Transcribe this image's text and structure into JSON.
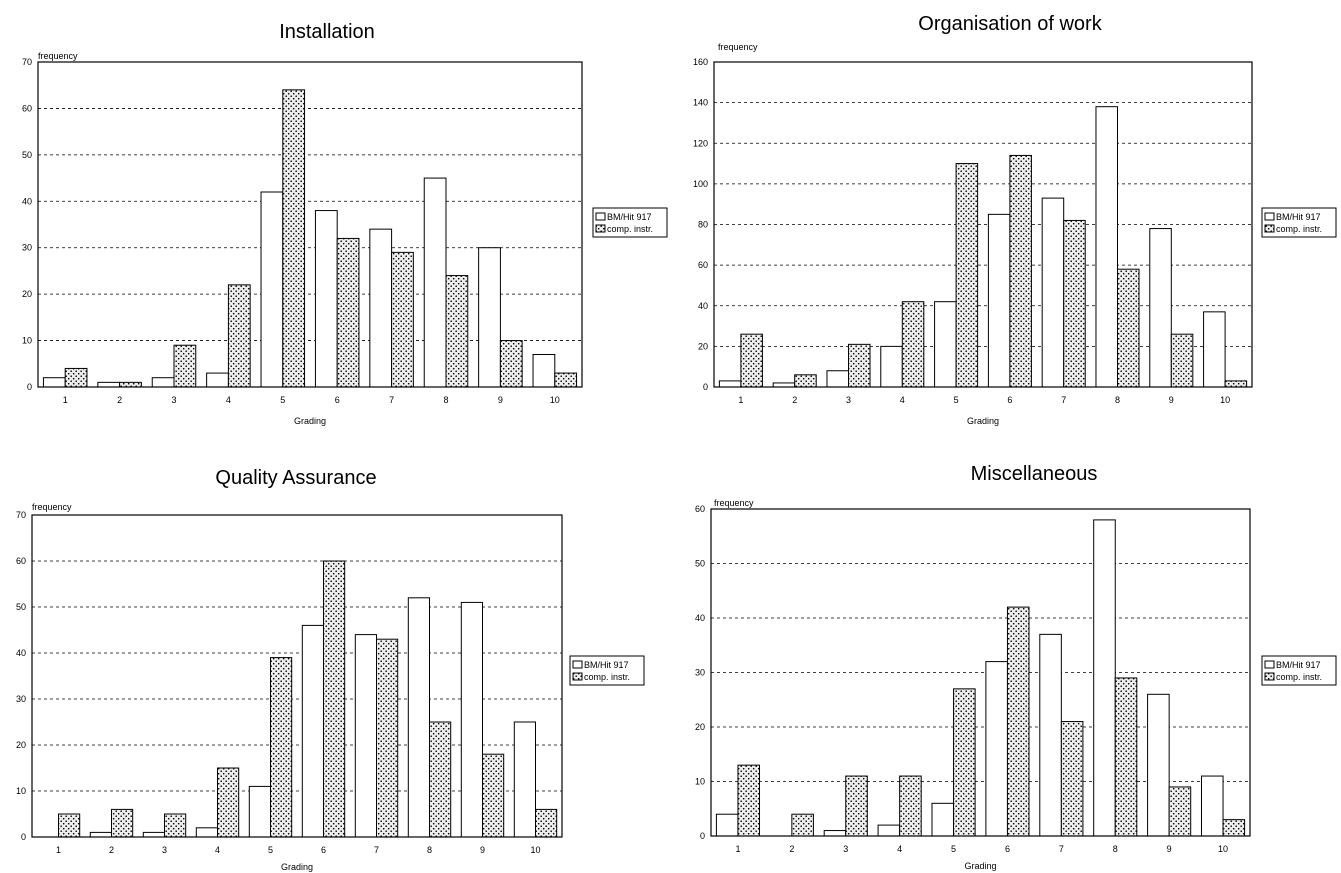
{
  "colors": {
    "bm_fill": "#ffffff",
    "comp_fill": "#eeeeee",
    "comp_dots": "#000000",
    "frame": "#000000",
    "grid": "#000000"
  },
  "chart_data": [
    {
      "type": "bar",
      "title": "Installation",
      "ylabel": "frequency",
      "xlabel": "Grading",
      "categories": [
        "1",
        "2",
        "3",
        "4",
        "5",
        "6",
        "7",
        "8",
        "9",
        "10"
      ],
      "ylim": [
        0,
        70
      ],
      "yticks": [
        0,
        10,
        20,
        30,
        40,
        50,
        60,
        70
      ],
      "grid": true,
      "legend": "right",
      "series": [
        {
          "name": "BM/Hit 917",
          "values": [
            2,
            1,
            2,
            3,
            42,
            38,
            34,
            45,
            30,
            7
          ]
        },
        {
          "name": "comp. instr.",
          "values": [
            4,
            1,
            9,
            22,
            64,
            32,
            29,
            24,
            10,
            3
          ]
        }
      ]
    },
    {
      "type": "bar",
      "title": "Organisation of work",
      "ylabel": "frequency",
      "xlabel": "Grading",
      "categories": [
        "1",
        "2",
        "3",
        "4",
        "5",
        "6",
        "7",
        "8",
        "9",
        "10"
      ],
      "ylim": [
        0,
        160
      ],
      "yticks": [
        0,
        20,
        40,
        60,
        80,
        100,
        120,
        140,
        160
      ],
      "grid": true,
      "legend": "right",
      "series": [
        {
          "name": "BM/Hit 917",
          "values": [
            3,
            2,
            8,
            20,
            42,
            85,
            93,
            138,
            78,
            37
          ]
        },
        {
          "name": "comp. instr.",
          "values": [
            26,
            6,
            21,
            42,
            110,
            114,
            82,
            58,
            26,
            3
          ]
        }
      ]
    },
    {
      "type": "bar",
      "title": "Quality Assurance",
      "ylabel": "frequency",
      "xlabel": "Grading",
      "categories": [
        "1",
        "2",
        "3",
        "4",
        "5",
        "6",
        "7",
        "8",
        "9",
        "10"
      ],
      "ylim": [
        0,
        70
      ],
      "yticks": [
        0,
        10,
        20,
        30,
        40,
        50,
        60,
        70
      ],
      "grid": true,
      "legend": "right",
      "series": [
        {
          "name": "BM/Hit 917",
          "values": [
            0,
            1,
            1,
            2,
            11,
            46,
            44,
            52,
            51,
            25
          ]
        },
        {
          "name": "comp. instr.",
          "values": [
            5,
            6,
            5,
            15,
            39,
            60,
            43,
            25,
            18,
            6
          ]
        }
      ]
    },
    {
      "type": "bar",
      "title": "Miscellaneous",
      "ylabel": "frequency",
      "xlabel": "Grading",
      "categories": [
        "1",
        "2",
        "3",
        "4",
        "5",
        "6",
        "7",
        "8",
        "9",
        "10"
      ],
      "ylim": [
        0,
        60
      ],
      "yticks": [
        0,
        10,
        20,
        30,
        40,
        50,
        60
      ],
      "grid": true,
      "legend": "right",
      "series": [
        {
          "name": "BM/Hit 917",
          "values": [
            4,
            0,
            1,
            2,
            6,
            32,
            37,
            58,
            26,
            11
          ]
        },
        {
          "name": "comp. instr.",
          "values": [
            13,
            4,
            11,
            11,
            27,
            42,
            21,
            29,
            9,
            3
          ]
        }
      ]
    }
  ]
}
